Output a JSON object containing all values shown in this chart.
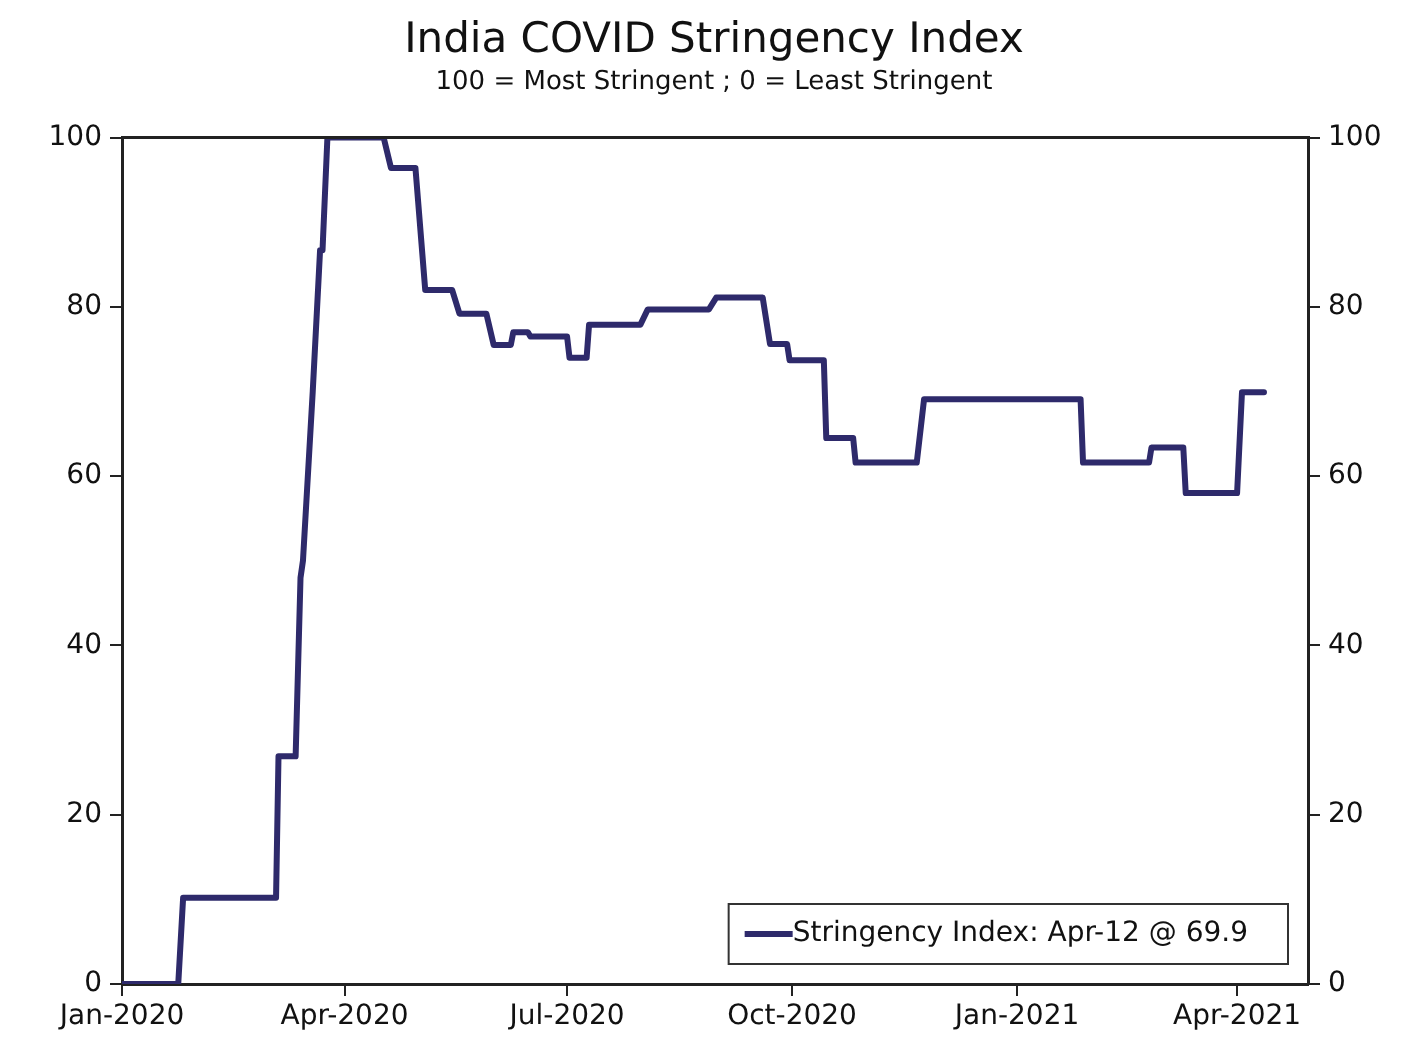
{
  "chart_data": {
    "type": "line",
    "title": "India COVID Stringency Index",
    "subtitle": "100 = Most Stringent ; 0 = Least Stringent",
    "x": [
      "2020-01-01",
      "2020-01-24",
      "2020-01-26",
      "2020-03-04",
      "2020-03-05",
      "2020-03-12",
      "2020-03-14",
      "2020-03-15",
      "2020-03-19",
      "2020-03-22",
      "2020-03-23",
      "2020-03-25",
      "2020-04-17",
      "2020-04-20",
      "2020-04-30",
      "2020-05-04",
      "2020-05-15",
      "2020-05-18",
      "2020-05-29",
      "2020-06-01",
      "2020-06-08",
      "2020-06-09",
      "2020-06-15",
      "2020-06-16",
      "2020-07-01",
      "2020-07-02",
      "2020-07-09",
      "2020-07-10",
      "2020-07-31",
      "2020-08-03",
      "2020-08-28",
      "2020-08-31",
      "2020-09-19",
      "2020-09-22",
      "2020-09-29",
      "2020-09-30",
      "2020-10-14",
      "2020-10-15",
      "2020-10-26",
      "2020-10-27",
      "2020-11-21",
      "2020-11-24",
      "2021-01-27",
      "2021-01-28",
      "2021-02-24",
      "2021-02-25",
      "2021-03-10",
      "2021-03-11",
      "2021-04-01",
      "2021-04-03",
      "2021-04-12"
    ],
    "series": [
      {
        "name": "Stringency Index: Apr-12 @ 69.9",
        "color": "#2e2a6b",
        "values": [
          0,
          0,
          10.2,
          10.2,
          26.9,
          26.9,
          48,
          50,
          70,
          86.7,
          86.7,
          100,
          100,
          96.4,
          96.4,
          82,
          82,
          79.2,
          79.2,
          75.5,
          75.5,
          77,
          77,
          76.5,
          76.5,
          74,
          74,
          77.9,
          77.9,
          79.7,
          79.7,
          81.1,
          81.1,
          75.6,
          75.6,
          73.7,
          73.7,
          64.5,
          64.5,
          61.6,
          61.6,
          69.1,
          69.1,
          61.6,
          61.6,
          63.4,
          63.4,
          58,
          58,
          69.9,
          69.9
        ]
      }
    ],
    "xlim": [
      "2020-01-01",
      "2021-04-30"
    ],
    "xticks": [
      {
        "value": "2020-01-01",
        "label": "Jan-2020"
      },
      {
        "value": "2020-04-01",
        "label": "Apr-2020"
      },
      {
        "value": "2020-07-01",
        "label": "Jul-2020"
      },
      {
        "value": "2020-10-01",
        "label": "Oct-2020"
      },
      {
        "value": "2021-01-01",
        "label": "Jan-2021"
      },
      {
        "value": "2021-04-01",
        "label": "Apr-2021"
      }
    ],
    "ylim": [
      0,
      100
    ],
    "yticks": [
      0,
      20,
      40,
      60,
      80,
      100
    ],
    "y2lim": [
      0,
      100
    ],
    "y2ticks": [
      0,
      20,
      40,
      60,
      80,
      100
    ],
    "grid": false,
    "legend": "bottom right",
    "marker": "none",
    "line_style": "solid"
  }
}
